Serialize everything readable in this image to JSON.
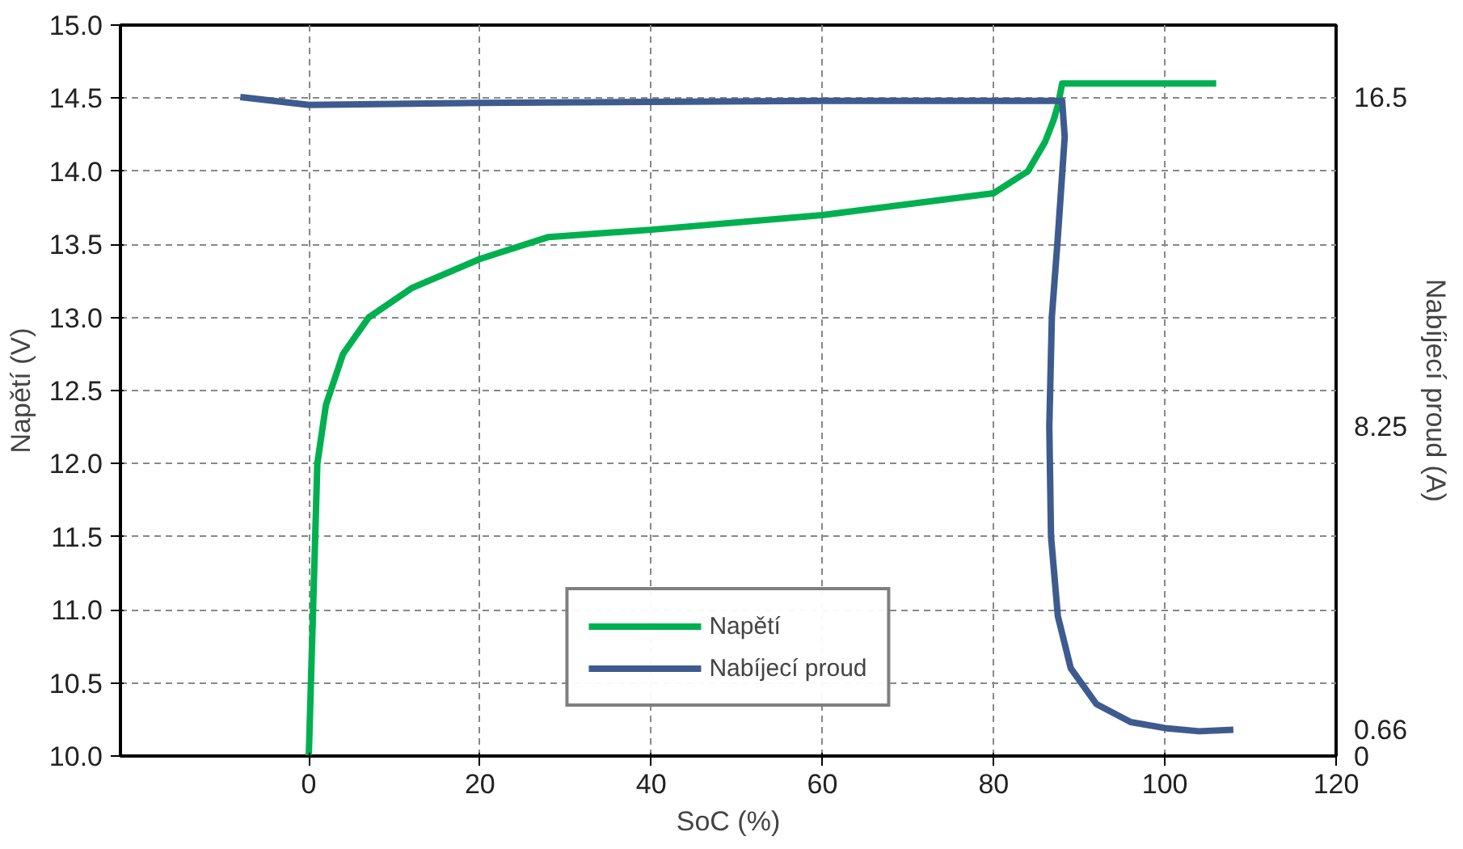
{
  "chart_data": {
    "type": "line",
    "xlabel": "SoC (%)",
    "ylabel": "Napětí (V)",
    "y2label": "Nabíjecí proud (A)",
    "xlim": [
      -22,
      120
    ],
    "xticks": [
      0,
      20,
      40,
      60,
      80,
      100,
      120
    ],
    "ylim": [
      10.0,
      15.0
    ],
    "yticks": [
      {
        "value": 10,
        "label": "10.0"
      },
      {
        "value": 10.5,
        "label": "10.5"
      },
      {
        "value": 11,
        "label": "11.0"
      },
      {
        "value": 11.5,
        "label": "11.5"
      },
      {
        "value": 12,
        "label": "12.0"
      },
      {
        "value": 12.5,
        "label": "12.5"
      },
      {
        "value": 13,
        "label": "13.0"
      },
      {
        "value": 13.5,
        "label": "13.5"
      },
      {
        "value": 14,
        "label": "14.0"
      },
      {
        "value": 14.5,
        "label": "14.5"
      },
      {
        "value": 15,
        "label": "15.0"
      }
    ],
    "y2lim": [
      0,
      18.3
    ],
    "y2ticks": [
      0,
      0.66,
      8.25,
      16.5
    ],
    "grid": true,
    "legend": "bottom",
    "line_style": "solid",
    "marker": "none",
    "series": [
      {
        "name": "Napětí",
        "color": "#00b050",
        "x": [
          0,
          0.5,
          1,
          2,
          4,
          7,
          12,
          20,
          28,
          40,
          60,
          80,
          84,
          86,
          87,
          87.5,
          88,
          106
        ],
        "values": [
          10.0,
          11.0,
          12.0,
          12.4,
          12.75,
          13.0,
          13.2,
          13.4,
          13.55,
          13.6,
          13.7,
          13.85,
          14.0,
          14.2,
          14.35,
          14.45,
          14.6,
          14.6
        ]
      },
      {
        "name": "Nabíjecí proud",
        "color": "#3e5b8f",
        "axis": "y2",
        "x": [
          -8,
          0,
          20,
          60,
          88,
          88.3,
          87.5,
          86.8,
          86.5,
          86.7,
          87.5,
          89,
          92,
          96,
          100,
          104,
          108
        ],
        "values": [
          16.5,
          16.3,
          16.35,
          16.4,
          16.4,
          15.5,
          13,
          11,
          8.25,
          5.5,
          3.5,
          2.2,
          1.3,
          0.85,
          0.7,
          0.62,
          0.66
        ]
      }
    ]
  }
}
